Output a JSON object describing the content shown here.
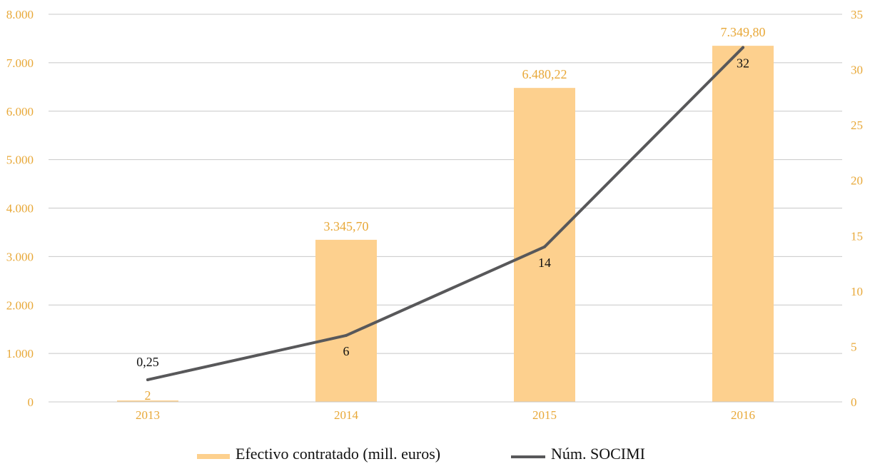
{
  "colors": {
    "bar": "#FDD08E",
    "line": "#58585A",
    "axis_text": "#E8A838",
    "grid": "#C8C8C8",
    "label_dark": "#111111"
  },
  "chart_data": {
    "type": "bar",
    "categories": [
      "2013",
      "2014",
      "2015",
      "2016"
    ],
    "series": [
      {
        "name": "Efectivo contratado (mill. euros)",
        "type": "bar",
        "axis": "left",
        "values": [
          0.25,
          3345.7,
          6480.22,
          7349.8
        ],
        "labels": [
          "0,25",
          "3.345,70",
          "6.480,22",
          "7.349,80"
        ]
      },
      {
        "name": "Núm. SOCIMI",
        "type": "line",
        "axis": "right",
        "values": [
          2,
          6,
          14,
          32
        ],
        "labels": [
          "2",
          "6",
          "14",
          "32"
        ]
      }
    ],
    "y_left": {
      "ylim": [
        0,
        8000
      ],
      "ticks": [
        0,
        1000,
        2000,
        3000,
        4000,
        5000,
        6000,
        7000,
        8000
      ],
      "tick_labels": [
        "0",
        "1.000",
        "2.000",
        "3.000",
        "4.000",
        "5.000",
        "6.000",
        "7.000",
        "8.000"
      ]
    },
    "y_right": {
      "ylim": [
        0,
        35
      ],
      "ticks": [
        0,
        5,
        10,
        15,
        20,
        25,
        30,
        35
      ],
      "tick_labels": [
        "0",
        "5",
        "10",
        "15",
        "20",
        "25",
        "30",
        "35"
      ]
    },
    "grid": true,
    "legend_position": "bottom"
  }
}
